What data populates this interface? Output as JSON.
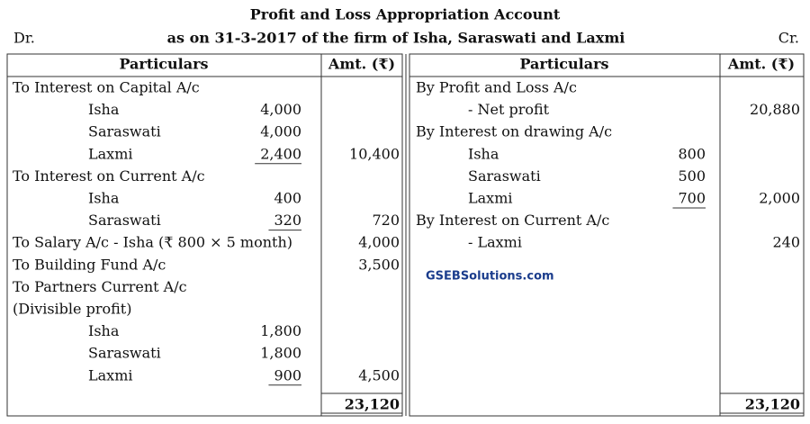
{
  "header": {
    "title": "Profit and Loss Appropriation Account",
    "left_mark": "Dr.",
    "subtitle": "as on 31-3-2017 of the firm of Isha, Saraswati and Laxmi",
    "right_mark": "Cr."
  },
  "table": {
    "left_headers": [
      "Particulars",
      "Amt. (₹)"
    ],
    "right_headers": [
      "Particulars",
      "Amt. (₹)"
    ],
    "left_rows": [
      {
        "text": "To Interest on Capital A/c"
      },
      {
        "name": "Isha",
        "inner": "4,000"
      },
      {
        "name": "Saraswati",
        "inner": "4,000"
      },
      {
        "name": "Laxmi",
        "inner": "2,400",
        "amt": "10,400"
      },
      {
        "text": "To Interest on Current A/c"
      },
      {
        "name": "Isha",
        "inner": "400"
      },
      {
        "name": "Saraswati",
        "inner": "320",
        "amt": "720"
      },
      {
        "text": "To Salary A/c - Isha (₹ 800 × 5 month)",
        "amt": "4,000"
      },
      {
        "text": "To Building Fund A/c",
        "amt": "3,500"
      },
      {
        "text": "To Partners Current A/c"
      },
      {
        "text": "(Divisible profit)"
      },
      {
        "name": "Isha",
        "inner": "1,800"
      },
      {
        "name": "Saraswati",
        "inner": "1,800"
      },
      {
        "name": "Laxmi",
        "inner": "900",
        "amt": "4,500"
      }
    ],
    "right_rows": [
      {
        "text": "By Profit and Loss A/c"
      },
      {
        "name": "- Net profit",
        "amt": "20,880"
      },
      {
        "text": "By Interest on drawing A/c"
      },
      {
        "name": "Isha",
        "inner": "800"
      },
      {
        "name": "Saraswati",
        "inner": "500"
      },
      {
        "name": "Laxmi",
        "inner": "700",
        "amt": "2,000"
      },
      {
        "text": "By Interest on Current A/c"
      },
      {
        "name": "- Laxmi",
        "amt": "240"
      }
    ],
    "left_total": "23,120",
    "right_total": "23,120"
  },
  "watermark": "GSEBSolutions.com"
}
